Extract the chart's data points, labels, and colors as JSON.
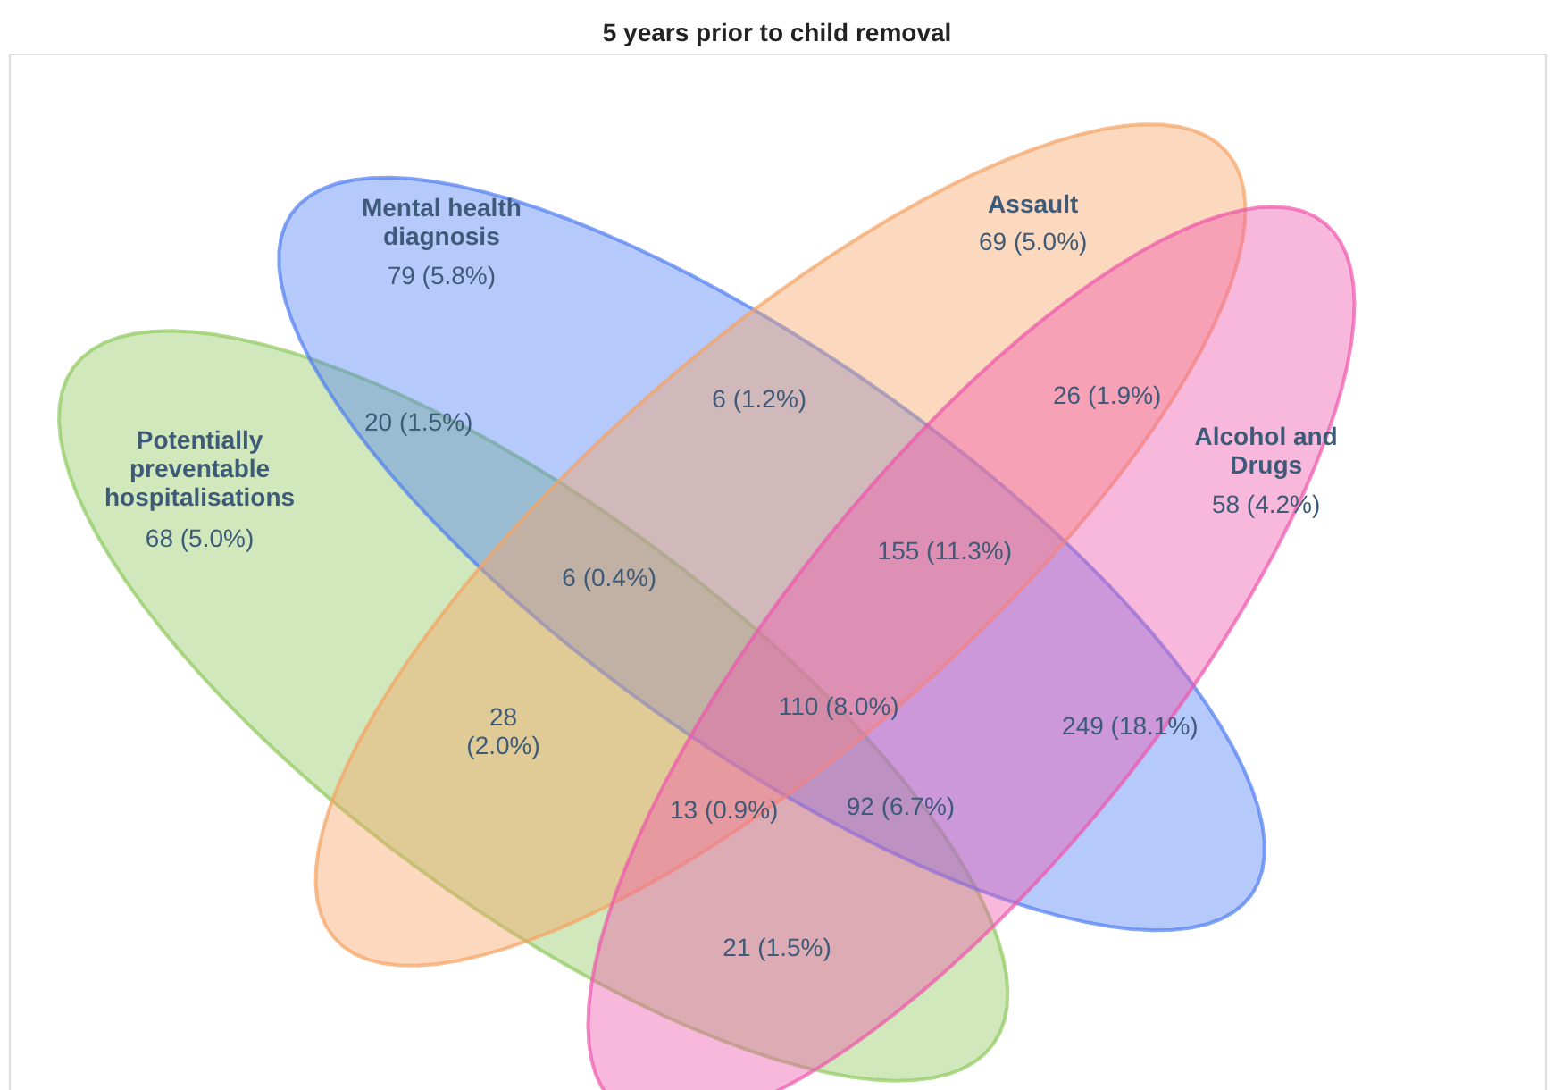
{
  "chart_data": {
    "type": "other",
    "title": "5 years prior to child removal",
    "categories": [
      "Potentially\npreventable\nhospitalisations",
      "Mental health\ndiagnosis",
      "Assault",
      "Alcohol and\nDrugs"
    ],
    "values": [
      68,
      79,
      69,
      58
    ],
    "value_labels": [
      "68 (5.0%)",
      "79 (5.8%)",
      "69 (5.0%)",
      "58 (4.2%)"
    ],
    "colors": [
      "#8ec95c",
      "#4f7ef2",
      "#f5a263",
      "#ee55ac"
    ],
    "annotations": [
      "20 (1.5%)",
      "6 (1.2%)",
      "26 (1.9%)",
      "155 (11.3%)",
      "6 (0.4%)",
      "28\n(2.0%)",
      "110 (8.0%)",
      "249 (18.1%)",
      "13 (0.9%)",
      "92 (6.7%)",
      "21 (1.5%)"
    ]
  }
}
